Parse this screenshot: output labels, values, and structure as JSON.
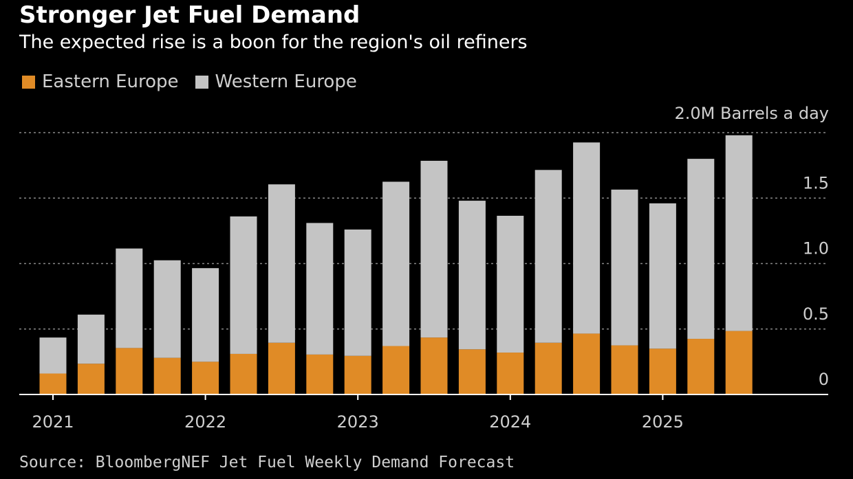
{
  "header": {
    "title": "Stronger Jet Fuel Demand",
    "subtitle": "The expected rise is a boon for the region's oil refiners"
  },
  "footer": {
    "source": "Source: BloombergNEF Jet Fuel Weekly Demand Forecast"
  },
  "colors": {
    "eastern": "#e08b26",
    "western": "#c4c4c4",
    "background": "#000000",
    "gridline": "#8a8a8a",
    "text": "#cfcfcf"
  },
  "chart_data": {
    "type": "bar",
    "stacked": true,
    "unit_label": "2.0M Barrels a day",
    "ylim": [
      0,
      2.0
    ],
    "y_ticks": [
      {
        "value": 0,
        "label": "0"
      },
      {
        "value": 0.5,
        "label": "0.5"
      },
      {
        "value": 1.0,
        "label": "1.0"
      },
      {
        "value": 1.5,
        "label": "1.5"
      }
    ],
    "x_labels": [
      {
        "index": 0,
        "label": "2021"
      },
      {
        "index": 4,
        "label": "2022"
      },
      {
        "index": 8,
        "label": "2023"
      },
      {
        "index": 12,
        "label": "2024"
      },
      {
        "index": 16,
        "label": "2025"
      }
    ],
    "grid": true,
    "legend_position": "top-left",
    "series": [
      {
        "name": "Eastern Europe",
        "values": [
          0.16,
          0.235,
          0.355,
          0.28,
          0.25,
          0.31,
          0.395,
          0.305,
          0.295,
          0.37,
          0.435,
          0.345,
          0.32,
          0.395,
          0.465,
          0.375,
          0.35,
          0.425,
          0.485
        ]
      },
      {
        "name": "Western Europe",
        "values": [
          0.275,
          0.375,
          0.76,
          0.745,
          0.715,
          1.05,
          1.21,
          1.005,
          0.965,
          1.255,
          1.35,
          1.135,
          1.045,
          1.32,
          1.46,
          1.19,
          1.11,
          1.375,
          1.495
        ]
      }
    ]
  }
}
